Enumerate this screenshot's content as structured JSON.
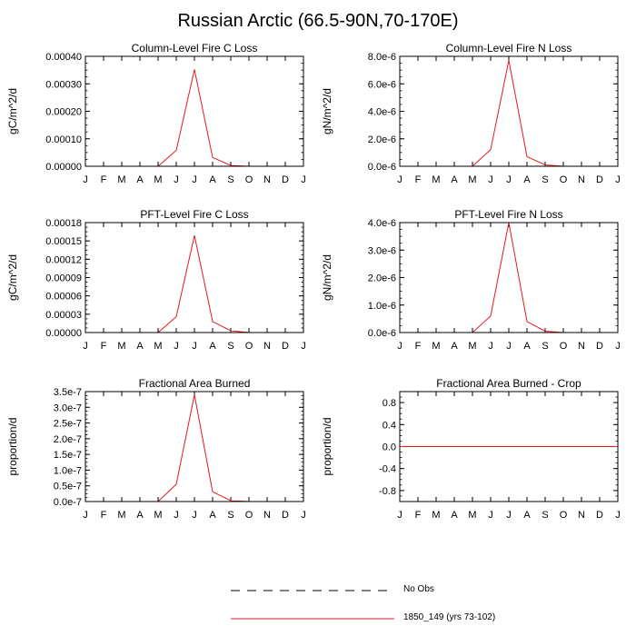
{
  "title": "Russian Arctic (66.5-90N,70-170E)",
  "months": [
    "J",
    "F",
    "M",
    "A",
    "M",
    "J",
    "J",
    "A",
    "S",
    "O",
    "N",
    "D",
    "J"
  ],
  "colors": {
    "model": "#e31a1c",
    "obs": "#000000",
    "axis": "#000000"
  },
  "chart_data": [
    {
      "type": "line",
      "title": "Column-Level Fire C Loss",
      "ylabel": "gC/m^2/d",
      "ylim": [
        0,
        0.0004
      ],
      "yticks": [
        0,
        0.0001,
        0.0002,
        0.0003,
        0.0004
      ],
      "ytick_labels": [
        "0.00000",
        "0.00010",
        "0.00020",
        "0.00030",
        "0.00040"
      ],
      "series": [
        {
          "name": "1850_149 (yrs 73-102)",
          "values": [
            0,
            0,
            0,
            0,
            0,
            5.8e-05,
            0.000352,
            3.2e-05,
            3e-06,
            0,
            0,
            0,
            0
          ]
        }
      ]
    },
    {
      "type": "line",
      "title": "Column-Level Fire N Loss",
      "ylabel": "gN/m^2/d",
      "ylim": [
        0,
        8e-06
      ],
      "yticks": [
        0,
        2e-06,
        4e-06,
        6e-06,
        8e-06
      ],
      "ytick_labels": [
        "0.0e-6",
        "2.0e-6",
        "4.0e-6",
        "6.0e-6",
        "8.0e-6"
      ],
      "series": [
        {
          "name": "1850_149 (yrs 73-102)",
          "values": [
            0,
            0,
            0,
            0,
            0,
            1.2e-06,
            7.7e-06,
            7e-07,
            1e-07,
            0,
            0,
            0,
            0
          ]
        }
      ]
    },
    {
      "type": "line",
      "title": "PFT-Level Fire C Loss",
      "ylabel": "gC/m^2/d",
      "ylim": [
        0,
        0.00018
      ],
      "yticks": [
        0,
        3e-05,
        6e-05,
        9e-05,
        0.00012,
        0.00015,
        0.00018
      ],
      "ytick_labels": [
        "0.00000",
        "0.00003",
        "0.00006",
        "0.00009",
        "0.00012",
        "0.00015",
        "0.00018"
      ],
      "series": [
        {
          "name": "1850_149 (yrs 73-102)",
          "values": [
            0,
            0,
            0,
            0,
            0,
            2.6e-05,
            0.000159,
            1.8e-05,
            3e-06,
            0,
            0,
            0,
            0
          ]
        }
      ]
    },
    {
      "type": "line",
      "title": "PFT-Level Fire N Loss",
      "ylabel": "gN/m^2/d",
      "ylim": [
        0,
        4e-06
      ],
      "yticks": [
        0,
        1e-06,
        2e-06,
        3e-06,
        4e-06
      ],
      "ytick_labels": [
        "0.0e-6",
        "1.0e-6",
        "2.0e-6",
        "3.0e-6",
        "4.0e-6"
      ],
      "series": [
        {
          "name": "1850_149 (yrs 73-102)",
          "values": [
            0,
            0,
            0,
            0,
            0,
            6e-07,
            4e-06,
            4e-07,
            5e-08,
            0,
            0,
            0,
            0
          ]
        }
      ]
    },
    {
      "type": "line",
      "title": "Fractional Area Burned",
      "ylabel": "proportion/d",
      "ylim": [
        0,
        3.5e-07
      ],
      "yticks": [
        0,
        5e-08,
        1e-07,
        1.5e-07,
        2e-07,
        2.5e-07,
        3e-07,
        3.5e-07
      ],
      "ytick_labels": [
        "0.0e-7",
        "0.5e-7",
        "1.0e-7",
        "1.5e-7",
        "2.0e-7",
        "2.5e-7",
        "3.0e-7",
        "3.5e-7"
      ],
      "series": [
        {
          "name": "1850_149 (yrs 73-102)",
          "values": [
            0,
            0,
            0,
            0,
            0,
            5.5e-08,
            3.4e-07,
            3.1e-08,
            3e-09,
            0,
            0,
            0,
            0
          ]
        }
      ]
    },
    {
      "type": "line",
      "title": "Fractional Area Burned - Crop",
      "ylabel": "proportion/d",
      "ylim": [
        -1.0,
        1.0
      ],
      "yticks": [
        -0.8,
        -0.4,
        0.0,
        0.4,
        0.8
      ],
      "ytick_labels": [
        "-0.8",
        "-0.4",
        "0.0",
        "0.4",
        "0.8"
      ],
      "series": [
        {
          "name": "1850_149 (yrs 73-102)",
          "values": [
            0,
            0,
            0,
            0,
            0,
            0,
            0,
            0,
            0,
            0,
            0,
            0,
            0
          ]
        }
      ]
    }
  ],
  "legend": {
    "obs_label": "No Obs",
    "model_label": "1850_149 (yrs 73-102)"
  }
}
